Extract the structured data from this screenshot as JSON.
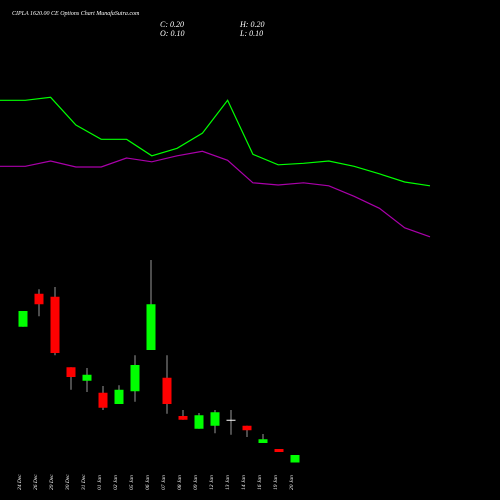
{
  "chart_data": {
    "type": "candlestick",
    "title": "CIPLA 1620.00 CE Options Chart MunafaSutra.com",
    "annotations": [
      "C: 0.20",
      "O: 0.10",
      "H: 0.20",
      "L: 0.10"
    ],
    "categories": [
      "24 Dec",
      "26 Dec",
      "29 Dec",
      "30 Dec",
      "31 Dec",
      "01 Jan",
      "02 Jan",
      "05 Jan",
      "06 Jan",
      "07 Jan",
      "08 Jan",
      "09 Jan",
      "12 Jan",
      "13 Jan",
      "14 Jan",
      "16 Jan",
      "19 Jan",
      "20 Jan"
    ],
    "open": [
      1.91,
      2.35,
      2.31,
      1.37,
      1.19,
      1.03,
      0.88,
      1.05,
      1.6,
      1.23,
      0.72,
      0.55,
      0.59,
      0.67,
      0.59,
      0.36,
      0.28,
      0.1
    ],
    "high": [
      2.12,
      2.41,
      2.44,
      1.37,
      1.36,
      1.12,
      1.13,
      1.53,
      2.8,
      1.53,
      0.8,
      0.76,
      0.8,
      0.8,
      0.59,
      0.48,
      0.28,
      0.2
    ],
    "low": [
      1.91,
      2.05,
      1.53,
      1.07,
      1.04,
      0.8,
      0.88,
      0.91,
      1.6,
      0.75,
      0.67,
      0.55,
      0.49,
      0.47,
      0.44,
      0.36,
      0.24,
      0.1
    ],
    "close": [
      2.12,
      2.21,
      1.56,
      1.24,
      1.27,
      0.83,
      1.07,
      1.4,
      2.21,
      0.88,
      0.67,
      0.73,
      0.77,
      0.67,
      0.53,
      0.41,
      0.24,
      0.2
    ],
    "up_color": "#00ff00",
    "down_color": "#ff0000",
    "lines": [
      {
        "color": "#00ff00",
        "values": [
          4.93,
          4.93,
          4.97,
          4.6,
          4.41,
          4.41,
          4.19,
          4.29,
          4.49,
          4.93,
          4.21,
          4.07,
          4.09,
          4.12,
          4.05,
          3.95,
          3.84,
          3.79
        ]
      },
      {
        "color": "#aa00aa",
        "values": [
          4.05,
          4.05,
          4.12,
          4.04,
          4.04,
          4.16,
          4.11,
          4.19,
          4.25,
          4.13,
          3.83,
          3.8,
          3.83,
          3.79,
          3.65,
          3.49,
          3.23,
          3.11
        ]
      }
    ],
    "ylim": [
      0,
      6
    ]
  }
}
